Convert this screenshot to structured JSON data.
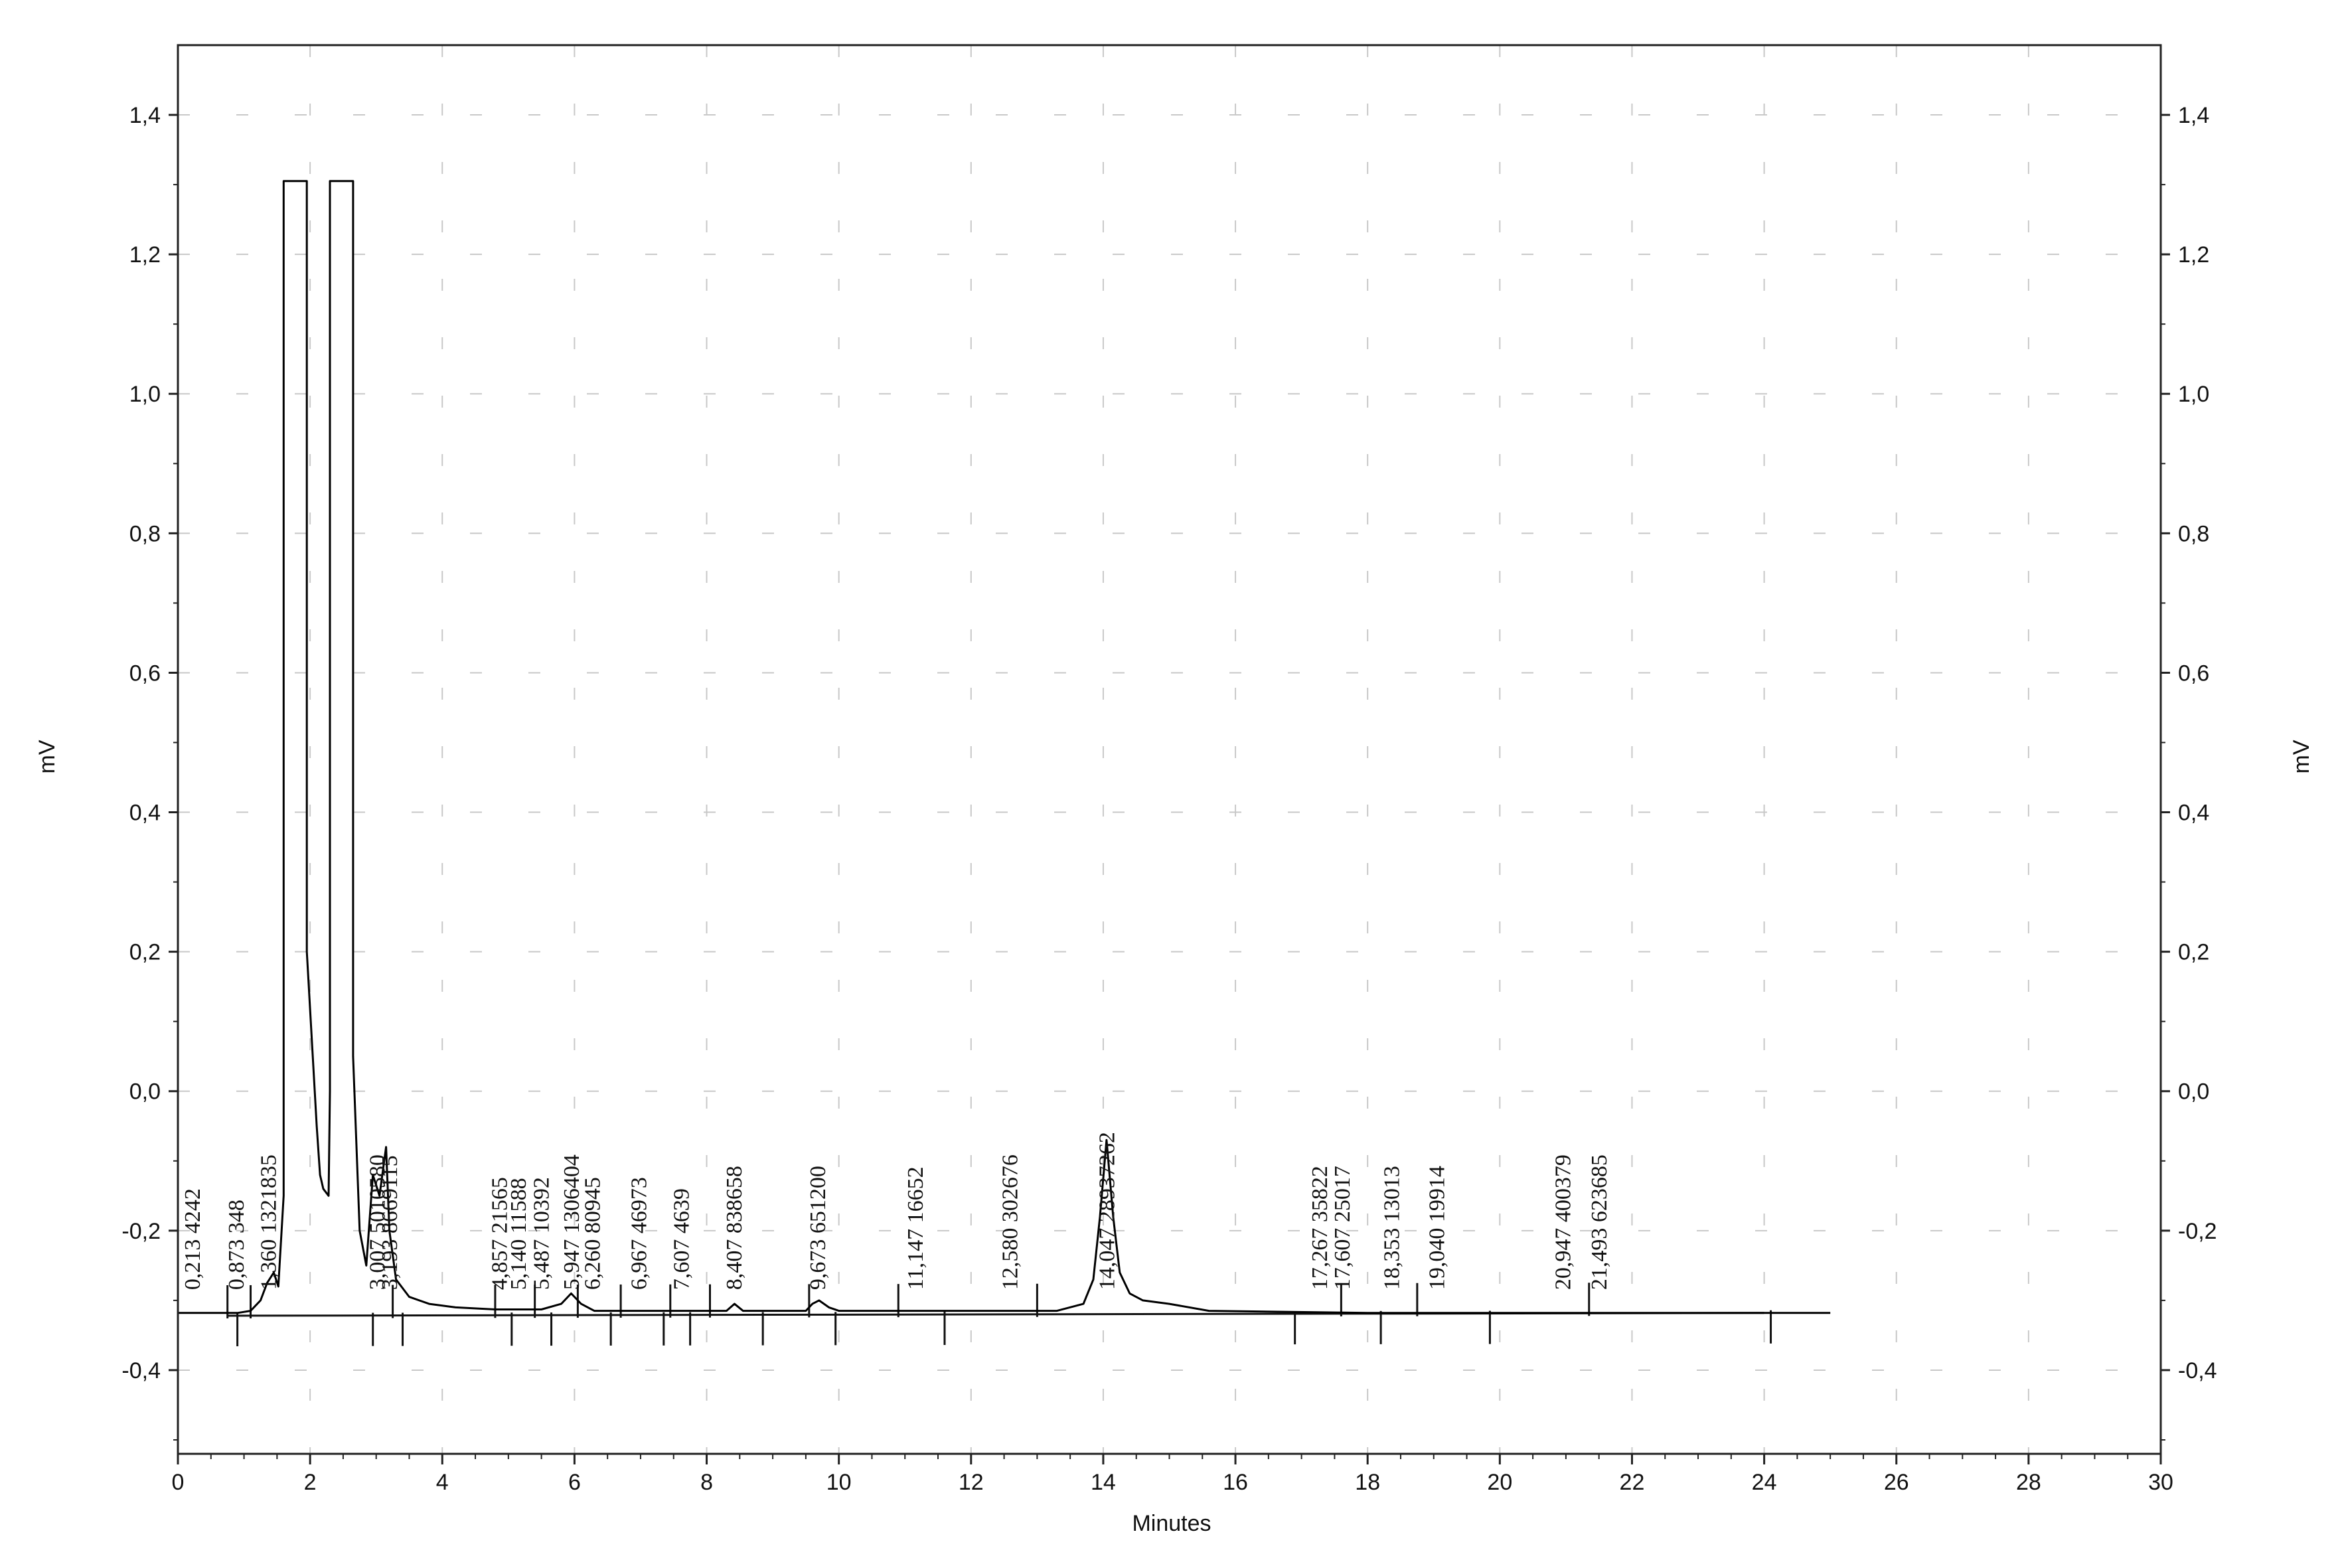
{
  "chart_data": {
    "type": "line",
    "title": "",
    "xlabel": "Minutes",
    "ylabel": "mV",
    "ylabel_right": "mV",
    "xlim": [
      0,
      30
    ],
    "ylim": [
      -0.52,
      1.5
    ],
    "x_ticks": [
      0,
      2,
      4,
      6,
      8,
      10,
      12,
      14,
      16,
      18,
      20,
      22,
      24,
      26,
      28,
      30
    ],
    "x_tick_labels": [
      "0",
      "2",
      "4",
      "6",
      "8",
      "10",
      "12",
      "14",
      "16",
      "18",
      "20",
      "22",
      "24",
      "26",
      "28",
      "30"
    ],
    "y_ticks": [
      -0.4,
      -0.2,
      0.0,
      0.2,
      0.4,
      0.6,
      0.8,
      1.0,
      1.2,
      1.4
    ],
    "y_tick_labels": [
      "-0,4",
      "-0,2",
      "0,0",
      "0,2",
      "0,4",
      "0,6",
      "0,8",
      "1,0",
      "1,2",
      "1,4"
    ],
    "grid": "dashed",
    "legend": "none",
    "series": [
      {
        "color": "#000000",
        "x": [
          0,
          0.9,
          1.1,
          1.25,
          1.35,
          1.45,
          1.52,
          1.6,
          1.6,
          1.95,
          1.95,
          2.1,
          2.15,
          2.2,
          2.28,
          2.3,
          2.3,
          2.65,
          2.65,
          2.75,
          2.85,
          2.95,
          3.05,
          3.15,
          3.2,
          3.3,
          3.5,
          3.8,
          4.2,
          4.8,
          5.5,
          5.8,
          5.95,
          6.1,
          6.3,
          7.5,
          8.3,
          8.42,
          8.55,
          9.5,
          9.6,
          9.7,
          9.85,
          10,
          12,
          13.3,
          13.7,
          13.85,
          13.95,
          14.05,
          14.15,
          14.25,
          14.4,
          14.6,
          15,
          15.6,
          18,
          25
        ],
        "y": [
          -0.318,
          -0.318,
          -0.315,
          -0.3,
          -0.275,
          -0.26,
          -0.28,
          -0.15,
          1.305,
          1.305,
          0.2,
          -0.05,
          -0.12,
          -0.14,
          -0.15,
          0.0,
          1.305,
          1.305,
          0.05,
          -0.2,
          -0.25,
          -0.12,
          -0.15,
          -0.08,
          -0.2,
          -0.27,
          -0.295,
          -0.305,
          -0.31,
          -0.313,
          -0.313,
          -0.305,
          -0.29,
          -0.305,
          -0.315,
          -0.315,
          -0.315,
          -0.305,
          -0.315,
          -0.315,
          -0.305,
          -0.3,
          -0.31,
          -0.315,
          -0.315,
          -0.315,
          -0.305,
          -0.27,
          -0.18,
          -0.07,
          -0.18,
          -0.26,
          -0.29,
          -0.3,
          -0.305,
          -0.315,
          -0.318,
          -0.318
        ]
      }
    ],
    "baseline": {
      "x": [
        0.75,
        24
      ],
      "y": [
        -0.322,
        -0.318
      ]
    },
    "integration_markers": [
      0.75,
      0.9,
      1.1,
      2.95,
      3.25,
      3.4,
      4.8,
      5.05,
      5.4,
      5.65,
      6.05,
      6.55,
      6.7,
      7.35,
      7.45,
      7.75,
      8.05,
      8.85,
      9.55,
      9.95,
      10.9,
      11.6,
      13.0,
      16.9,
      17.6,
      18.2,
      18.75,
      19.85,
      21.35,
      24.1
    ],
    "peak_labels": [
      {
        "x": 0.213,
        "text": "0,213 4242"
      },
      {
        "x": 0.873,
        "text": "0,873 348"
      },
      {
        "x": 1.36,
        "text": "1,360 1321835"
      },
      {
        "x": 3.007,
        "text": "3,007 5010580"
      },
      {
        "x": 3.193,
        "text": "3,193 8669115"
      },
      {
        "x": 4.857,
        "text": "4,857 21565"
      },
      {
        "x": 5.14,
        "text": "5,140 11588"
      },
      {
        "x": 5.487,
        "text": "5,487 10392"
      },
      {
        "x": 5.947,
        "text": "5,947 1306404"
      },
      {
        "x": 6.26,
        "text": "6,260 80945"
      },
      {
        "x": 6.967,
        "text": "6,967 46973"
      },
      {
        "x": 7.607,
        "text": "7,607 4639"
      },
      {
        "x": 8.407,
        "text": "8,407 838658"
      },
      {
        "x": 9.673,
        "text": "9,673 651200"
      },
      {
        "x": 11.147,
        "text": "11,147 16652"
      },
      {
        "x": 12.58,
        "text": "12,580 302676"
      },
      {
        "x": 14.047,
        "text": "14,047 28937262"
      },
      {
        "x": 17.267,
        "text": "17,267 35822"
      },
      {
        "x": 17.607,
        "text": "17,607 25017"
      },
      {
        "x": 18.353,
        "text": "18,353 13013"
      },
      {
        "x": 19.04,
        "text": "19,040 19914"
      },
      {
        "x": 20.947,
        "text": "20,947 400379"
      },
      {
        "x": 21.493,
        "text": "21,493 623685"
      }
    ]
  }
}
